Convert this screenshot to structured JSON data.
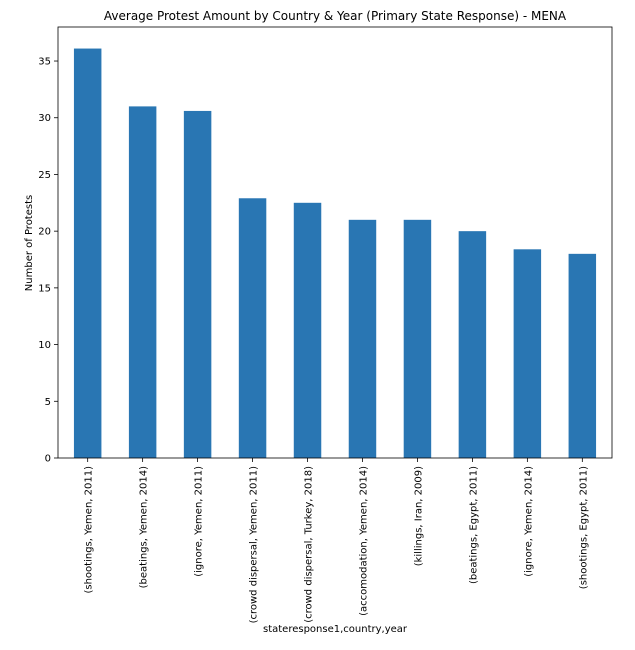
{
  "chart_data": {
    "type": "bar",
    "title": "Average Protest Amount by Country & Year (Primary State Response) - MENA",
    "xlabel": "stateresponse1,country,year",
    "ylabel": "Number of Protests",
    "ylim": [
      0,
      38
    ],
    "yticks": [
      0,
      5,
      10,
      15,
      20,
      25,
      30,
      35
    ],
    "grid": false,
    "legend": "none",
    "bar_color": "#2976b3",
    "categories": [
      "(shootings, Yemen, 2011)",
      "(beatings, Yemen, 2014)",
      "(ignore, Yemen, 2011)",
      "(crowd dispersal, Yemen, 2011)",
      "(crowd dispersal, Turkey, 2018)",
      "(accomodation, Yemen, 2014)",
      "(killings, Iran, 2009)",
      "(beatings, Egypt, 2011)",
      "(ignore, Yemen, 2014)",
      "(shootings, Egypt, 2011)"
    ],
    "values": [
      36.1,
      31.0,
      30.6,
      22.9,
      22.5,
      21.0,
      21.0,
      20.0,
      18.4,
      18.0
    ]
  }
}
